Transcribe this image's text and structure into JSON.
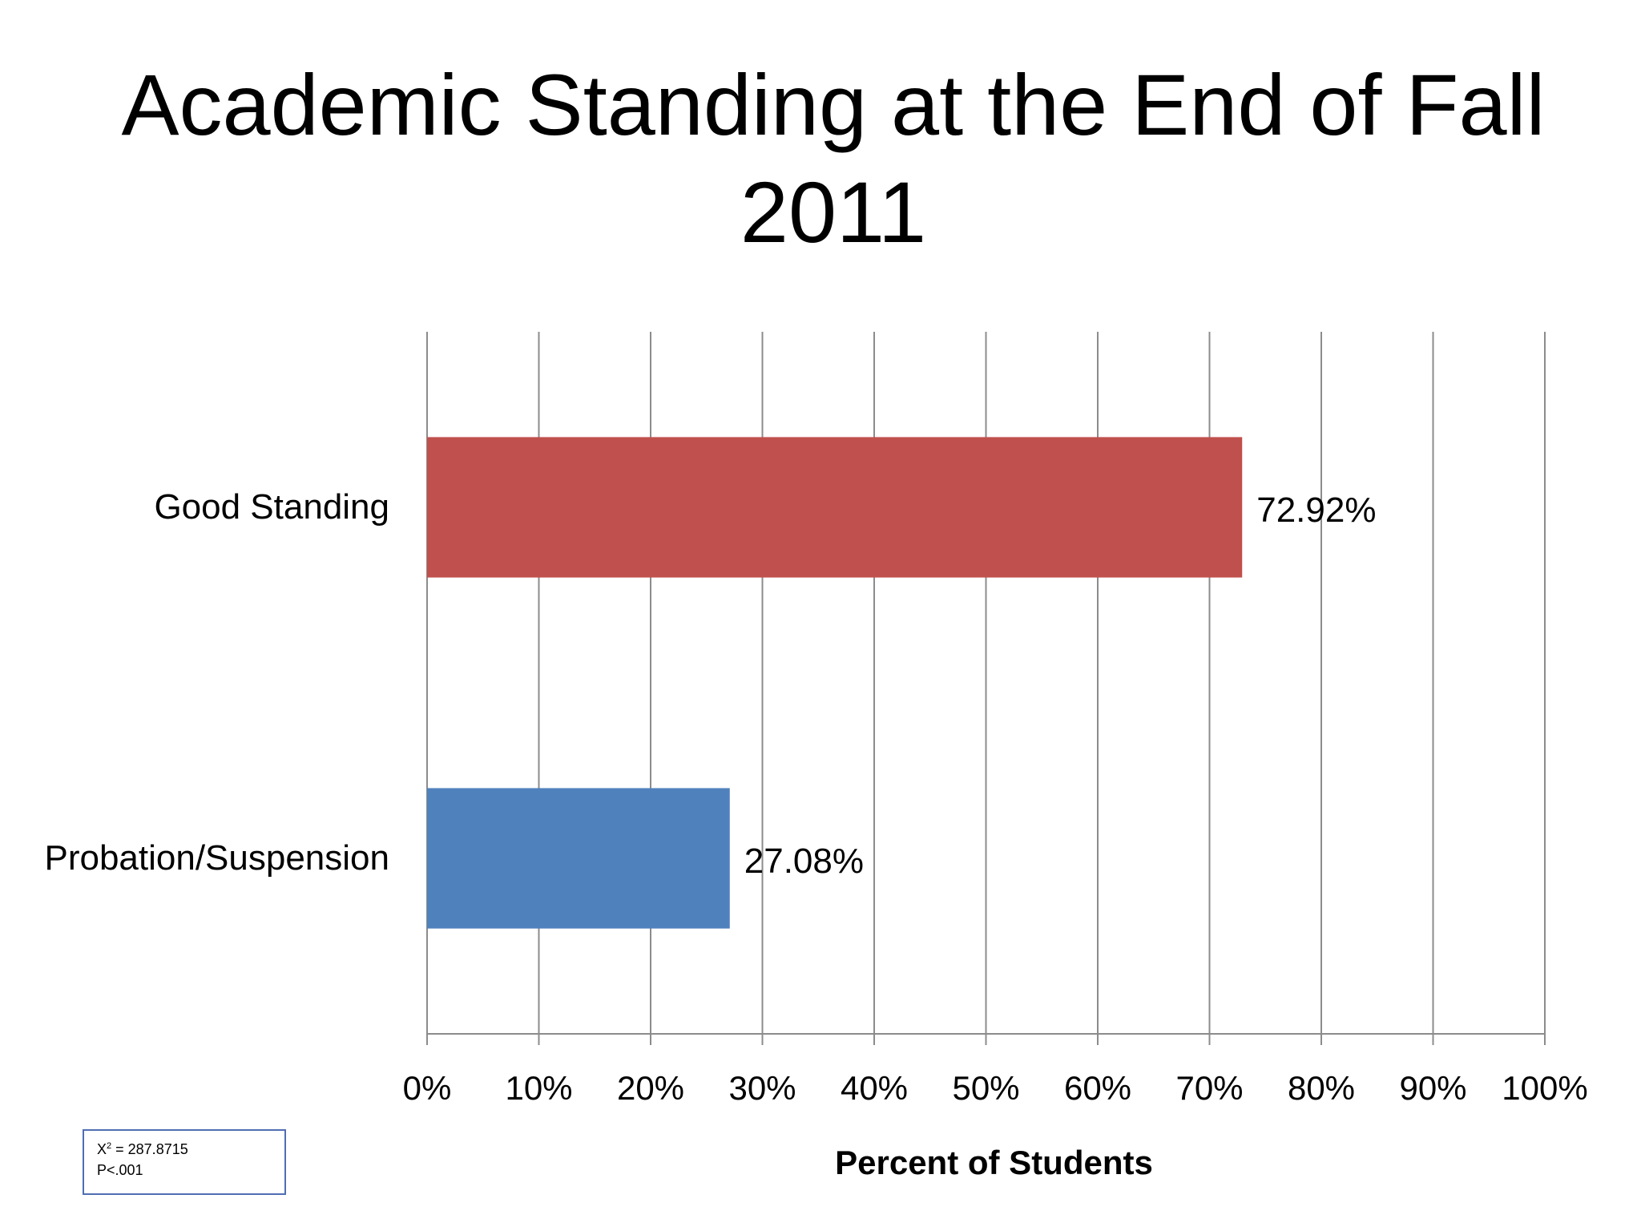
{
  "chart_data": {
    "type": "bar",
    "orientation": "horizontal",
    "title": "Academic Standing at the End of Fall 2011",
    "xlabel": "Percent of Students",
    "ylabel": "",
    "xlim": [
      0,
      100
    ],
    "ticks": [
      "0%",
      "10%",
      "20%",
      "30%",
      "40%",
      "50%",
      "60%",
      "70%",
      "80%",
      "90%",
      "100%"
    ],
    "grid": true,
    "categories": [
      "Good Standing",
      "Probation/Suspension"
    ],
    "values": [
      72.92,
      27.08
    ],
    "data_labels": [
      "72.92%",
      "27.08%"
    ],
    "colors": [
      "#C0504D",
      "#4F81BD"
    ]
  },
  "stats": {
    "chi_square_symbol": "X",
    "chi_square_exponent": "2",
    "chi_square_value": " = 287.8715",
    "p_value": "P<.001"
  },
  "colors": {
    "grid": "#8C8C8C",
    "stats_border": "#4F6EB3"
  }
}
